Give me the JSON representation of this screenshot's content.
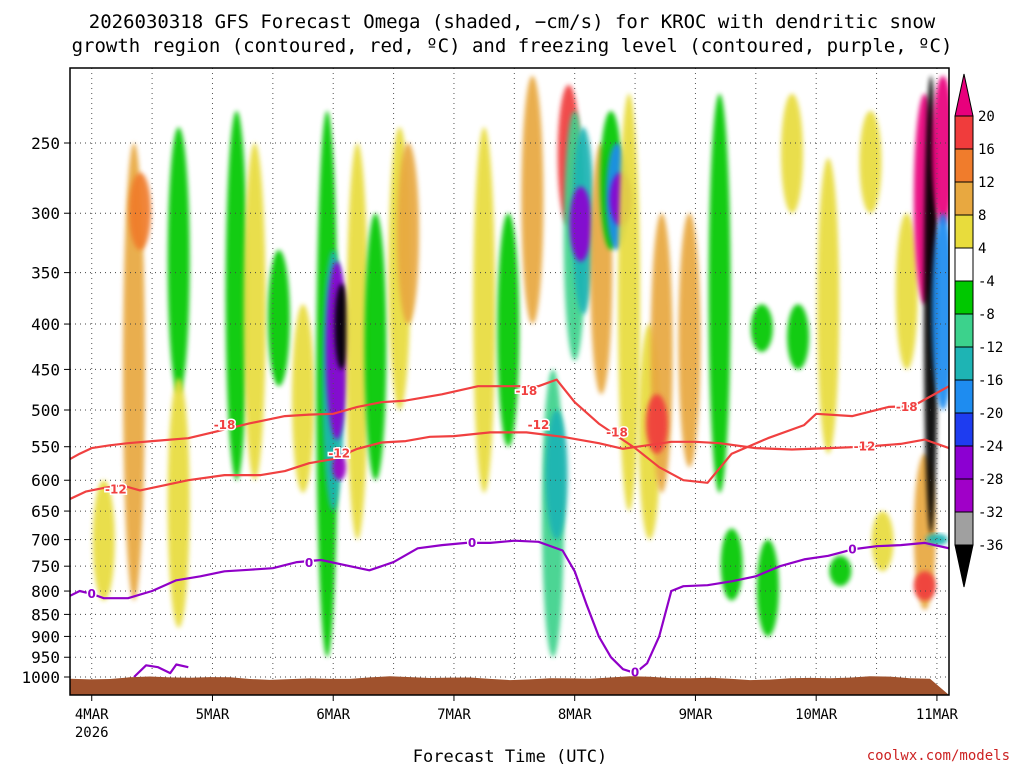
{
  "chart_data": {
    "type": "heatmap",
    "title_lines": [
      "2026030318 GFS Forecast Omega (shaded, −cm/s) for KROC with dendritic snow",
      "growth region (contoured, red, ºC) and freezing level (contoured, purple, ºC)"
    ],
    "xlabel": "Forecast Time (UTC)",
    "ylabel": "",
    "credit": "coolwx.com/models",
    "x_ticks": [
      {
        "label": "4MAR",
        "sub": "2026",
        "day": 4
      },
      {
        "label": "5MAR",
        "sub": "",
        "day": 5
      },
      {
        "label": "6MAR",
        "sub": "",
        "day": 6
      },
      {
        "label": "7MAR",
        "sub": "",
        "day": 7
      },
      {
        "label": "8MAR",
        "sub": "",
        "day": 8
      },
      {
        "label": "9MAR",
        "sub": "",
        "day": 9
      },
      {
        "label": "10MAR",
        "sub": "",
        "day": 10
      },
      {
        "label": "11MAR",
        "sub": "",
        "day": 11
      }
    ],
    "x_range_days": [
      3.82,
      11.1
    ],
    "y_ticks": [
      250,
      300,
      350,
      400,
      450,
      500,
      550,
      600,
      650,
      700,
      750,
      800,
      850,
      900,
      950,
      1000
    ],
    "y_axis": "pressure (hPa), inverted",
    "grid": true,
    "colorbar": {
      "labels": [
        "20",
        "16",
        "12",
        "8",
        "4",
        "-4",
        "-8",
        "-12",
        "-16",
        "-20",
        "-24",
        "-28",
        "-32",
        "-36"
      ],
      "bins": [
        {
          "from": 20,
          "to": null,
          "color": "#e8007c"
        },
        {
          "from": 16,
          "to": 20,
          "color": "#f03c3c"
        },
        {
          "from": 12,
          "to": 16,
          "color": "#f07c2c"
        },
        {
          "from": 8,
          "to": 12,
          "color": "#e8a840"
        },
        {
          "from": 4,
          "to": 8,
          "color": "#e8dc3c"
        },
        {
          "from": -4,
          "to": 4,
          "color": "#ffffff"
        },
        {
          "from": -8,
          "to": -4,
          "color": "#00c800"
        },
        {
          "from": -12,
          "to": -8,
          "color": "#3cd28c"
        },
        {
          "from": -16,
          "to": -12,
          "color": "#1eb4b4"
        },
        {
          "from": -20,
          "to": -16,
          "color": "#1e8cf0"
        },
        {
          "from": -24,
          "to": -20,
          "color": "#1e3cf0"
        },
        {
          "from": -28,
          "to": -24,
          "color": "#8c00d2"
        },
        {
          "from": -32,
          "to": -28,
          "color": "#a000c8"
        },
        {
          "from": -36,
          "to": -32,
          "color": "#a0a0a0"
        },
        {
          "from": null,
          "to": -36,
          "color": "#000000"
        }
      ]
    },
    "omega_features": [
      {
        "day": 4.35,
        "pmin": 250,
        "pmax": 820,
        "value": 8
      },
      {
        "day": 4.4,
        "pmin": 270,
        "pmax": 330,
        "value": 14
      },
      {
        "day": 4.1,
        "pmin": 600,
        "pmax": 820,
        "value": 6
      },
      {
        "day": 4.72,
        "pmin": 240,
        "pmax": 480,
        "value": -6
      },
      {
        "day": 4.72,
        "pmin": 460,
        "pmax": 880,
        "value": 6
      },
      {
        "day": 5.2,
        "pmin": 230,
        "pmax": 600,
        "value": -6
      },
      {
        "day": 5.35,
        "pmin": 250,
        "pmax": 600,
        "value": 6
      },
      {
        "day": 5.55,
        "pmin": 330,
        "pmax": 470,
        "value": -6
      },
      {
        "day": 5.75,
        "pmin": 380,
        "pmax": 620,
        "value": 6
      },
      {
        "day": 5.95,
        "pmin": 230,
        "pmax": 950,
        "value": -6
      },
      {
        "day": 6.0,
        "pmin": 330,
        "pmax": 650,
        "value": -14
      },
      {
        "day": 6.03,
        "pmin": 340,
        "pmax": 540,
        "value": -26
      },
      {
        "day": 6.07,
        "pmin": 360,
        "pmax": 450,
        "value": -38
      },
      {
        "day": 6.05,
        "pmin": 560,
        "pmax": 600,
        "value": -30
      },
      {
        "day": 6.2,
        "pmin": 250,
        "pmax": 700,
        "value": 6
      },
      {
        "day": 6.35,
        "pmin": 300,
        "pmax": 600,
        "value": -6
      },
      {
        "day": 6.55,
        "pmin": 240,
        "pmax": 500,
        "value": 6
      },
      {
        "day": 6.62,
        "pmin": 250,
        "pmax": 400,
        "value": 10
      },
      {
        "day": 7.25,
        "pmin": 240,
        "pmax": 620,
        "value": 6
      },
      {
        "day": 7.45,
        "pmin": 300,
        "pmax": 550,
        "value": -6
      },
      {
        "day": 7.65,
        "pmin": 210,
        "pmax": 400,
        "value": 10
      },
      {
        "day": 7.82,
        "pmin": 450,
        "pmax": 950,
        "value": -10
      },
      {
        "day": 7.85,
        "pmin": 500,
        "pmax": 700,
        "value": -14
      },
      {
        "day": 7.95,
        "pmin": 215,
        "pmax": 310,
        "value": 16
      },
      {
        "day": 8.0,
        "pmin": 230,
        "pmax": 440,
        "value": -10
      },
      {
        "day": 8.07,
        "pmin": 240,
        "pmax": 390,
        "value": -16
      },
      {
        "day": 8.05,
        "pmin": 280,
        "pmax": 340,
        "value": -28
      },
      {
        "day": 8.22,
        "pmin": 250,
        "pmax": 480,
        "value": 8
      },
      {
        "day": 8.3,
        "pmin": 230,
        "pmax": 330,
        "value": -6
      },
      {
        "day": 8.35,
        "pmin": 250,
        "pmax": 330,
        "value": -18
      },
      {
        "day": 8.38,
        "pmin": 270,
        "pmax": 310,
        "value": -28
      },
      {
        "day": 8.45,
        "pmin": 220,
        "pmax": 650,
        "value": 6
      },
      {
        "day": 8.62,
        "pmin": 400,
        "pmax": 700,
        "value": 6
      },
      {
        "day": 8.72,
        "pmin": 300,
        "pmax": 620,
        "value": 10
      },
      {
        "day": 8.68,
        "pmin": 480,
        "pmax": 560,
        "value": 17
      },
      {
        "day": 8.95,
        "pmin": 300,
        "pmax": 580,
        "value": 8
      },
      {
        "day": 9.2,
        "pmin": 220,
        "pmax": 620,
        "value": -6
      },
      {
        "day": 9.3,
        "pmin": 680,
        "pmax": 820,
        "value": -6
      },
      {
        "day": 9.55,
        "pmin": 380,
        "pmax": 430,
        "value": -6
      },
      {
        "day": 9.6,
        "pmin": 700,
        "pmax": 900,
        "value": -6
      },
      {
        "day": 9.8,
        "pmin": 220,
        "pmax": 300,
        "value": 6
      },
      {
        "day": 9.85,
        "pmin": 380,
        "pmax": 450,
        "value": -6
      },
      {
        "day": 10.1,
        "pmin": 260,
        "pmax": 560,
        "value": 6
      },
      {
        "day": 10.2,
        "pmin": 730,
        "pmax": 790,
        "value": -6
      },
      {
        "day": 10.45,
        "pmin": 230,
        "pmax": 300,
        "value": 6
      },
      {
        "day": 10.55,
        "pmin": 650,
        "pmax": 760,
        "value": 6
      },
      {
        "day": 10.75,
        "pmin": 300,
        "pmax": 450,
        "value": 6
      },
      {
        "day": 10.9,
        "pmin": 220,
        "pmax": 380,
        "value": 20
      },
      {
        "day": 10.9,
        "pmin": 560,
        "pmax": 840,
        "value": 10
      },
      {
        "day": 10.9,
        "pmin": 760,
        "pmax": 820,
        "value": 16
      },
      {
        "day": 10.95,
        "pmin": 210,
        "pmax": 690,
        "value": -40
      },
      {
        "day": 11.05,
        "pmin": 210,
        "pmax": 310,
        "value": 22
      },
      {
        "day": 11.05,
        "pmin": 300,
        "pmax": 500,
        "value": -20
      },
      {
        "day": 11.0,
        "pmin": 690,
        "pmax": 710,
        "value": -14
      }
    ],
    "contours": [
      {
        "name": "-18",
        "color": "#f04040",
        "points": [
          [
            3.82,
            568
          ],
          [
            3.9,
            560
          ],
          [
            4.0,
            552
          ],
          [
            4.15,
            548
          ],
          [
            4.3,
            545
          ],
          [
            4.5,
            542
          ],
          [
            4.8,
            538
          ],
          [
            5.0,
            530
          ],
          [
            5.3,
            518
          ],
          [
            5.6,
            508
          ],
          [
            5.8,
            506
          ],
          [
            6.0,
            505
          ],
          [
            6.2,
            496
          ],
          [
            6.4,
            490
          ],
          [
            6.6,
            488
          ],
          [
            6.9,
            480
          ],
          [
            7.2,
            470
          ],
          [
            7.5,
            470
          ],
          [
            7.7,
            470
          ],
          [
            7.85,
            462
          ],
          [
            8.0,
            490
          ],
          [
            8.2,
            518
          ],
          [
            8.5,
            552
          ],
          [
            8.7,
            580
          ],
          [
            8.9,
            600
          ],
          [
            9.1,
            604
          ],
          [
            9.3,
            560
          ],
          [
            9.6,
            538
          ],
          [
            9.9,
            520
          ],
          [
            10.0,
            505
          ],
          [
            10.3,
            508
          ],
          [
            10.6,
            496
          ],
          [
            10.8,
            495
          ],
          [
            11.1,
            470
          ]
        ]
      },
      {
        "name": "-12",
        "color": "#f04040",
        "points": [
          [
            3.82,
            630
          ],
          [
            3.95,
            618
          ],
          [
            4.1,
            612
          ],
          [
            4.25,
            608
          ],
          [
            4.4,
            616
          ],
          [
            4.6,
            608
          ],
          [
            4.8,
            600
          ],
          [
            5.1,
            592
          ],
          [
            5.4,
            592
          ],
          [
            5.6,
            586
          ],
          [
            5.8,
            574
          ],
          [
            6.0,
            568
          ],
          [
            6.2,
            553
          ],
          [
            6.4,
            544
          ],
          [
            6.6,
            542
          ],
          [
            6.8,
            536
          ],
          [
            7.0,
            535
          ],
          [
            7.3,
            530
          ],
          [
            7.6,
            530
          ],
          [
            7.9,
            536
          ],
          [
            8.2,
            545
          ],
          [
            8.4,
            553
          ],
          [
            8.6,
            548
          ],
          [
            8.8,
            543
          ],
          [
            9.0,
            543
          ],
          [
            9.2,
            545
          ],
          [
            9.5,
            552
          ],
          [
            9.8,
            554
          ],
          [
            10.1,
            552
          ],
          [
            10.4,
            550
          ],
          [
            10.7,
            546
          ],
          [
            10.9,
            540
          ],
          [
            11.1,
            552
          ]
        ]
      },
      {
        "name": "0",
        "color": "#9000c8",
        "points": [
          [
            3.82,
            810
          ],
          [
            3.9,
            800
          ],
          [
            4.0,
            806
          ],
          [
            4.1,
            815
          ],
          [
            4.3,
            815
          ],
          [
            4.5,
            800
          ],
          [
            4.7,
            778
          ],
          [
            4.9,
            770
          ],
          [
            5.1,
            760
          ],
          [
            5.3,
            757
          ],
          [
            5.5,
            754
          ],
          [
            5.7,
            742
          ],
          [
            5.9,
            738
          ],
          [
            6.1,
            748
          ],
          [
            6.3,
            758
          ],
          [
            6.5,
            742
          ],
          [
            6.7,
            716
          ],
          [
            6.9,
            710
          ],
          [
            7.1,
            706
          ],
          [
            7.3,
            706
          ],
          [
            7.5,
            702
          ],
          [
            7.7,
            704
          ],
          [
            7.9,
            720
          ],
          [
            8.0,
            760
          ],
          [
            8.1,
            830
          ],
          [
            8.2,
            900
          ],
          [
            8.3,
            950
          ],
          [
            8.4,
            980
          ],
          [
            8.5,
            990
          ],
          [
            8.6,
            965
          ],
          [
            8.7,
            900
          ],
          [
            8.8,
            800
          ],
          [
            8.9,
            790
          ],
          [
            9.1,
            788
          ],
          [
            9.3,
            780
          ],
          [
            9.5,
            770
          ],
          [
            9.7,
            750
          ],
          [
            9.9,
            737
          ],
          [
            10.1,
            730
          ],
          [
            10.3,
            718
          ],
          [
            10.5,
            712
          ],
          [
            10.7,
            710
          ],
          [
            10.9,
            706
          ],
          [
            11.1,
            716
          ]
        ]
      },
      {
        "name": "",
        "color": "#9000c8",
        "points": [
          [
            4.35,
            1000
          ],
          [
            4.45,
            970
          ],
          [
            4.55,
            975
          ],
          [
            4.65,
            990
          ],
          [
            4.7,
            968
          ],
          [
            4.8,
            975
          ]
        ]
      }
    ],
    "contour_labels": [
      {
        "text": "-18",
        "day": 5.1,
        "p": 520,
        "color": "#f04040"
      },
      {
        "text": "-18",
        "day": 7.6,
        "p": 476,
        "color": "#f04040"
      },
      {
        "text": "-18",
        "day": 8.35,
        "p": 530,
        "color": "#f04040"
      },
      {
        "text": "-18",
        "day": 10.75,
        "p": 496,
        "color": "#f04040"
      },
      {
        "text": "-12",
        "day": 4.2,
        "p": 615,
        "color": "#f04040"
      },
      {
        "text": "-12",
        "day": 6.05,
        "p": 560,
        "color": "#f04040"
      },
      {
        "text": "-12",
        "day": 7.7,
        "p": 520,
        "color": "#f04040"
      },
      {
        "text": "-12",
        "day": 10.4,
        "p": 550,
        "color": "#f04040"
      },
      {
        "text": "0",
        "day": 4.0,
        "p": 806,
        "color": "#9000c8"
      },
      {
        "text": "0",
        "day": 5.8,
        "p": 744,
        "color": "#9000c8"
      },
      {
        "text": "0",
        "day": 7.15,
        "p": 706,
        "color": "#9000c8"
      },
      {
        "text": "0",
        "day": 8.5,
        "p": 988,
        "color": "#9000c8"
      },
      {
        "text": "0",
        "day": 10.3,
        "p": 718,
        "color": "#9000c8"
      }
    ],
    "terrain": {
      "color": "#a0522d",
      "top_hPa": 1003
    }
  }
}
